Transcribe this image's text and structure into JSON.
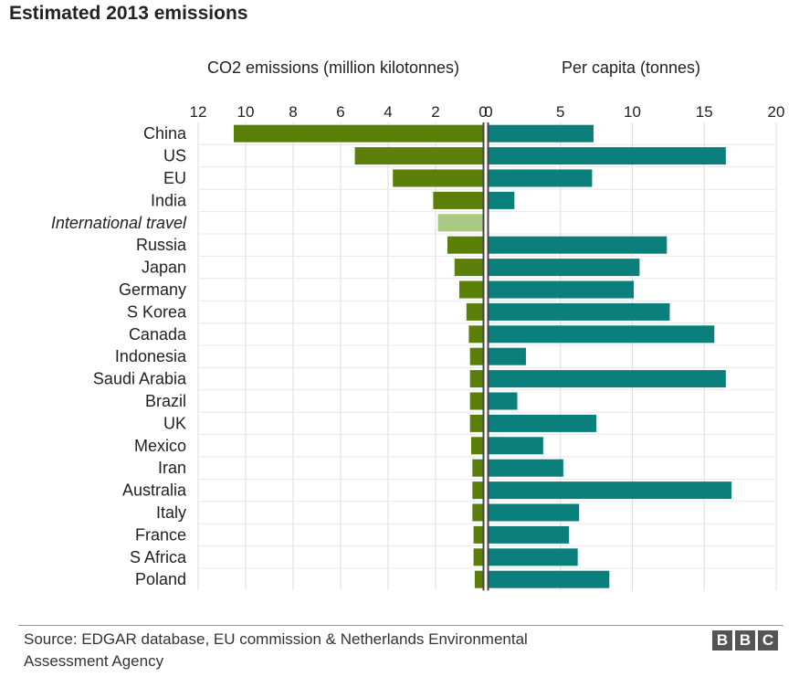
{
  "title": "Estimated 2013 emissions",
  "source_line1": "Source: EDGAR database, EU commission & Netherlands Environmental",
  "source_line2": "Assessment Agency",
  "logo": {
    "letters": [
      "B",
      "B",
      "C"
    ]
  },
  "colors": {
    "total_bar": "#5b7f09",
    "international_bar": "#a8c982",
    "per_capita_bar": "#0b7f7c",
    "grid": "#dddddd",
    "row_divider": "#ffffff",
    "zero_line": "#444444"
  },
  "chart_data": {
    "type": "bar",
    "layout": "back-to-back horizontal",
    "categories": [
      "China",
      "US",
      "EU",
      "India",
      "International travel",
      "Russia",
      "Japan",
      "Germany",
      "S Korea",
      "Canada",
      "Indonesia",
      "Saudi Arabia",
      "Brazil",
      "UK",
      "Mexico",
      "Iran",
      "Australia",
      "Italy",
      "France",
      "S Africa",
      "Poland"
    ],
    "italic_categories": [
      "International travel"
    ],
    "series": [
      {
        "name": "CO2 emissions (million kilotonnes)",
        "side": "left",
        "values": [
          10.5,
          5.4,
          3.8,
          2.1,
          1.9,
          1.5,
          1.2,
          1.0,
          0.7,
          0.6,
          0.55,
          0.55,
          0.55,
          0.55,
          0.5,
          0.45,
          0.45,
          0.45,
          0.4,
          0.4,
          0.35
        ],
        "xlim": [
          0,
          12
        ],
        "ticks": [
          12,
          10,
          8,
          6,
          4,
          2,
          0
        ]
      },
      {
        "name": "Per capita (tonnes)",
        "side": "right",
        "values": [
          7.3,
          16.5,
          7.2,
          1.8,
          null,
          12.4,
          10.5,
          10.1,
          12.6,
          15.7,
          2.6,
          16.5,
          2.0,
          7.5,
          3.8,
          5.2,
          16.9,
          6.3,
          5.6,
          6.2,
          8.4
        ],
        "xlim": [
          0,
          20
        ],
        "ticks": [
          0,
          5,
          10,
          15,
          20
        ]
      }
    ],
    "grid": true,
    "legend": "none"
  }
}
